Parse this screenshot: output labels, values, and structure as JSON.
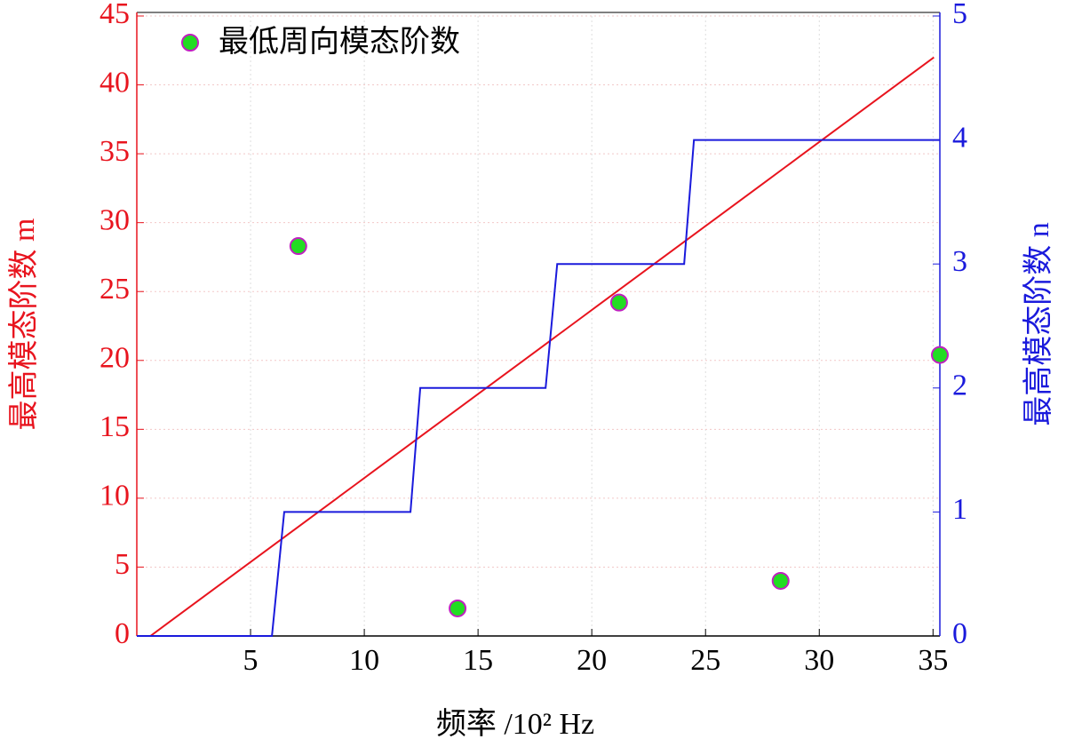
{
  "chart_data": {
    "type": "line",
    "xlabel": "频率 /10² Hz",
    "ylabel": "最高模态阶数 m",
    "y2label": "最高模态阶数 n",
    "xlim": [
      0,
      35.3
    ],
    "xticks": [
      5,
      10,
      15,
      20,
      25,
      30,
      35
    ],
    "ylim": [
      0,
      45
    ],
    "yticks": [
      0,
      5,
      10,
      15,
      20,
      25,
      30,
      35,
      40,
      45
    ],
    "y2lim": [
      0,
      5
    ],
    "y2ticks": [
      0,
      1,
      2,
      3,
      4,
      5
    ],
    "grid": true,
    "legend": "upper left",
    "series": [
      {
        "type": "step",
        "color": "#e8141e",
        "x": [
          0,
          0.6,
          1.42,
          2.24,
          3.06,
          3.88,
          4.7,
          5.52,
          6.34,
          7.16,
          7.98,
          8.8,
          9.62,
          10.44,
          11.26,
          12.08,
          12.9,
          13.72,
          14.54,
          15.36,
          16.18,
          17.0,
          17.82,
          18.64,
          19.46,
          20.28,
          21.1,
          21.92,
          22.74,
          23.56,
          24.38,
          25.2,
          26.02,
          26.84,
          27.66,
          28.48,
          29.3,
          30.12,
          30.94,
          31.76,
          32.58,
          33.4,
          34.22,
          35.04
        ],
        "values": [
          0,
          0,
          1,
          2,
          3,
          4,
          5,
          6,
          7,
          8,
          9,
          10,
          11,
          12,
          13,
          14,
          15,
          16,
          17,
          18,
          19,
          20,
          21,
          22,
          23,
          24,
          25,
          26,
          27,
          28,
          29,
          30,
          31,
          32,
          33,
          34,
          35,
          36,
          37,
          38,
          39,
          40,
          41,
          42
        ]
      },
      {
        "type": "line",
        "color": "#1a1adc",
        "axis": "y2",
        "x": [
          0,
          5.94,
          6.48,
          12.03,
          12.46,
          17.97,
          18.48,
          24.06,
          24.49,
          35.3
        ],
        "values": [
          0,
          0,
          1,
          1,
          2,
          2,
          3,
          3,
          4,
          4
        ]
      },
      {
        "type": "scatter",
        "name": "最低周向模态阶数",
        "color": "#22dd22",
        "edgecolor": "#c020c0",
        "x": [
          7.1,
          14.1,
          21.2,
          28.3,
          35.3
        ],
        "values": [
          28.3,
          2,
          24.2,
          4,
          20.4
        ]
      }
    ]
  }
}
